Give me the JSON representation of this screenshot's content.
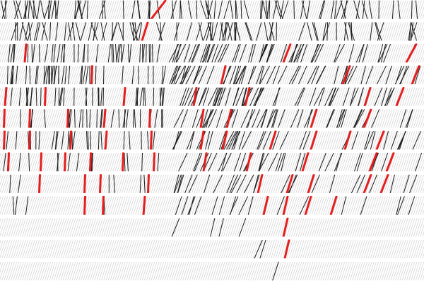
{
  "canvas": {
    "background": "#ffffff"
  },
  "palette": {
    "dark_stroke": "#1c1c1c",
    "faint_stroke": "#cfcfcf",
    "highlight_stroke": "#e41e1e"
  },
  "pattern": {
    "rows": 13,
    "panels": 3,
    "description_free": true
  }
}
